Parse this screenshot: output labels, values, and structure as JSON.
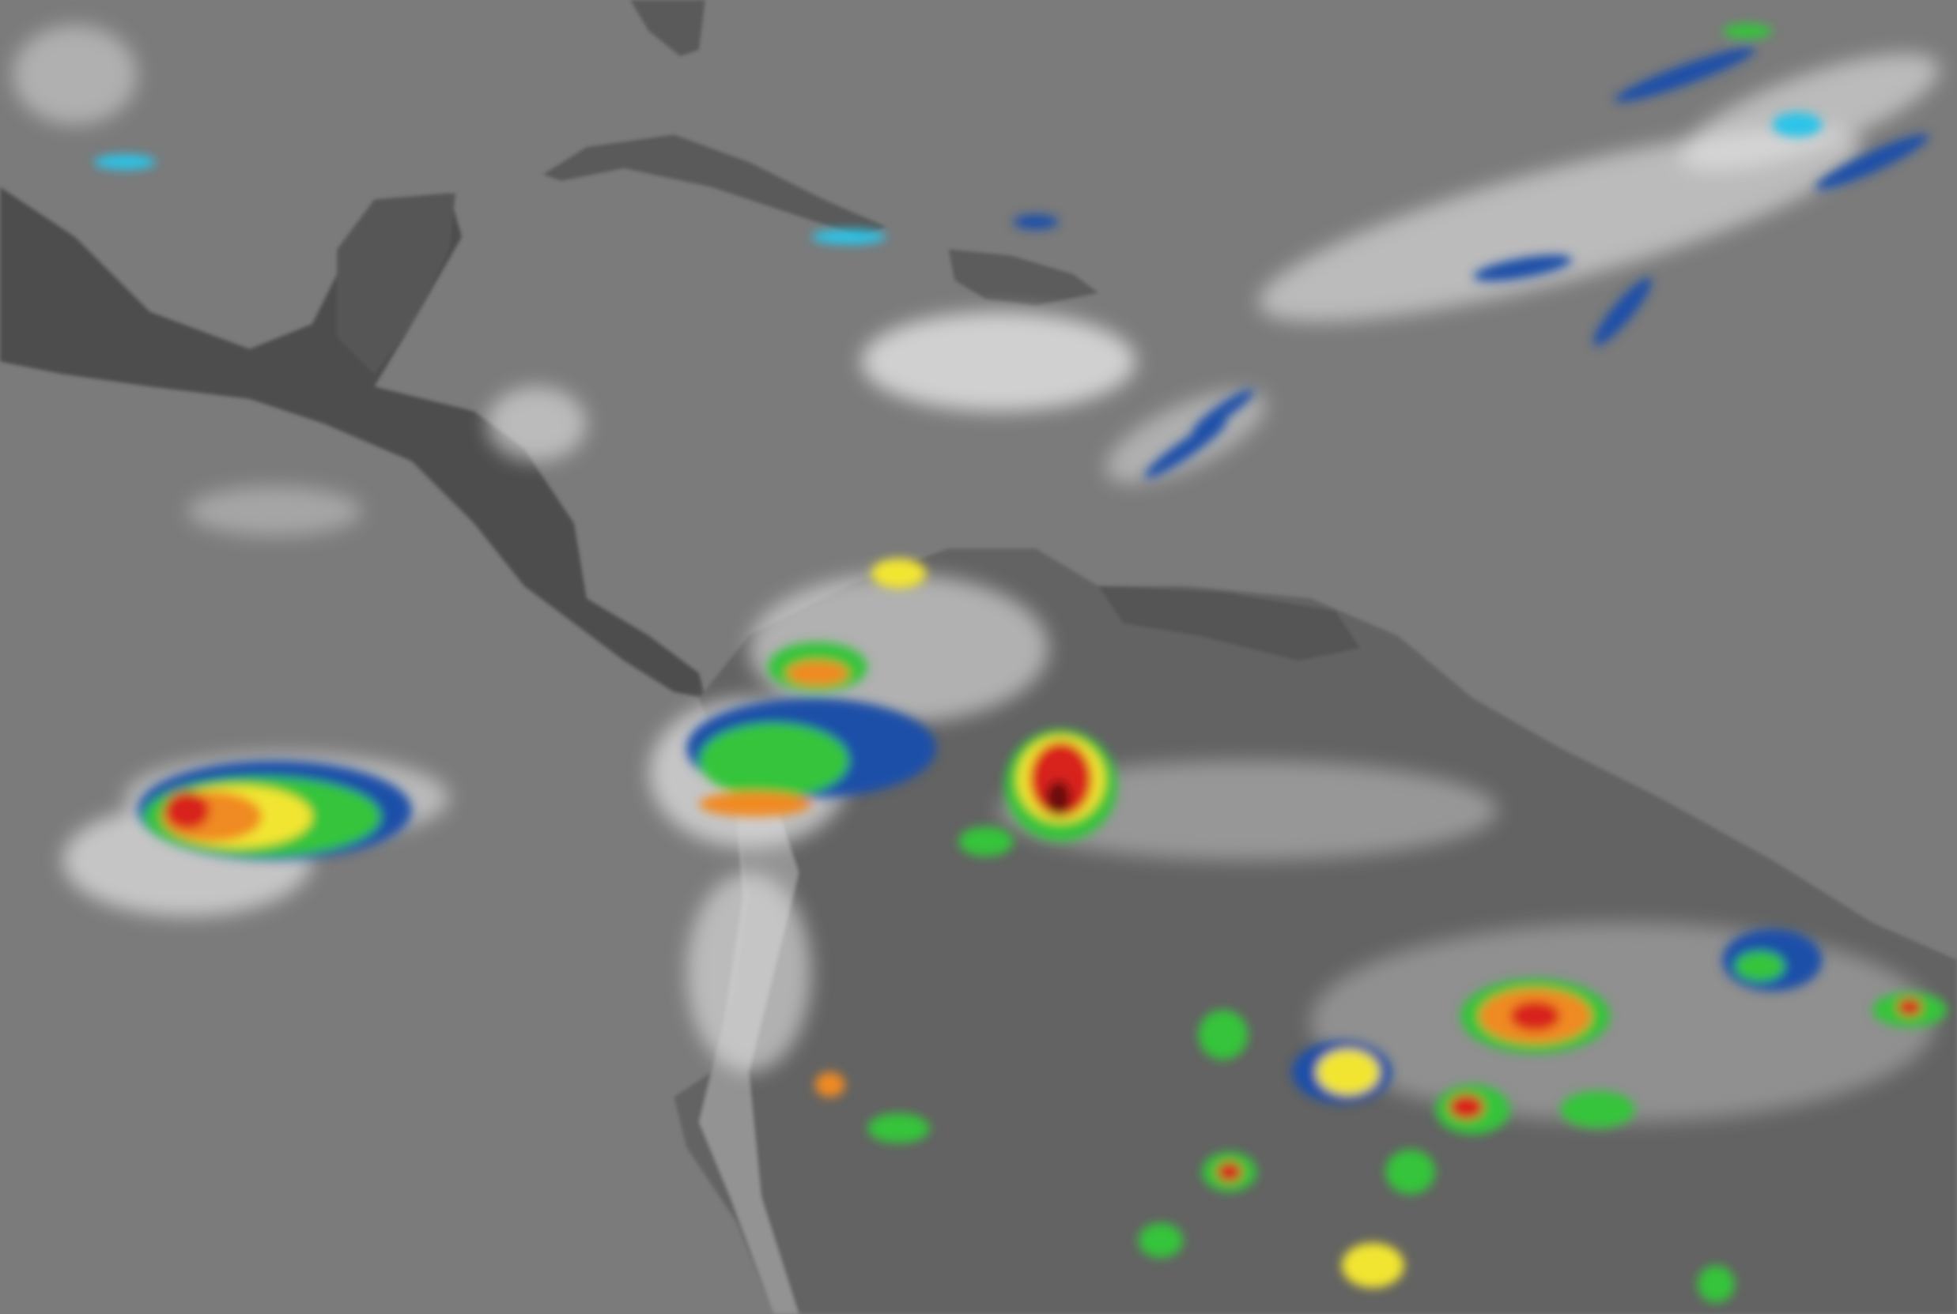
{
  "image": {
    "kind": "infrared satellite image",
    "colors": {
      "ocean": "#7b7b7b",
      "land_dark": "#4a4a4a",
      "land_mid": "#606060",
      "cloud_white": "#e8e8e8",
      "cold_blue": "#1f4fa8",
      "cyan": "#29c4e8",
      "green": "#36c43a",
      "yellow": "#f2e531",
      "orange": "#f08a24",
      "red": "#d8231e",
      "dark_red": "#6a1010"
    }
  }
}
